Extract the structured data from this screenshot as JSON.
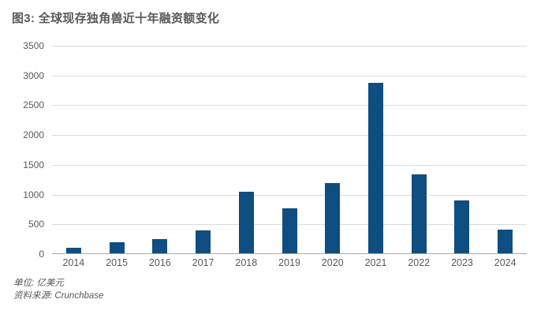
{
  "title": "图3: 全球现存独角兽近十年融资额变化",
  "footer": {
    "unit": "单位: 亿美元",
    "source": "资料来源: Crunchbase"
  },
  "colors": {
    "bar": "#0e4e80",
    "grid": "#dbdbdb",
    "axis": "#a8a8a8",
    "label": "#595959",
    "title": "#58595b"
  },
  "chart_data": {
    "type": "bar",
    "title": "图3: 全球现存独角兽近十年融资额变化",
    "categories": [
      "2014",
      "2015",
      "2016",
      "2017",
      "2018",
      "2019",
      "2020",
      "2021",
      "2022",
      "2023",
      "2024"
    ],
    "values": [
      95,
      190,
      245,
      390,
      1030,
      755,
      1185,
      2870,
      1330,
      890,
      400
    ],
    "xlabel": "",
    "ylabel": "",
    "unit": "亿美元",
    "source": "Crunchbase",
    "ylim": [
      0,
      3500
    ],
    "yticks": [
      0,
      500,
      1000,
      1500,
      2000,
      2500,
      3000,
      3500
    ],
    "grid": true,
    "legend": false
  }
}
